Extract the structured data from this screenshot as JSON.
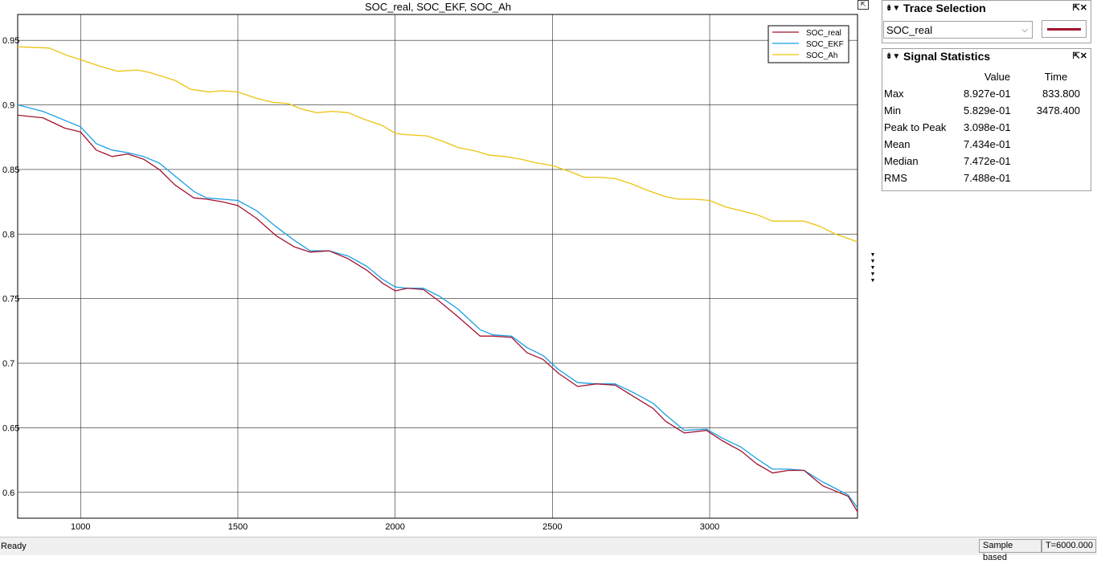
{
  "window": {
    "plot_title": "SOC_real, SOC_EKF, SOC_Ah"
  },
  "chart_data": {
    "type": "line",
    "title": "SOC_real, SOC_EKF, SOC_Ah",
    "xlabel": "",
    "ylabel": "",
    "xlim": [
      800,
      3470
    ],
    "ylim": [
      0.58,
      0.97
    ],
    "x_ticks": [
      "1000",
      "1500",
      "2000",
      "2500",
      "3000"
    ],
    "y_ticks": [
      "0.95",
      "0.9",
      "0.85",
      "0.8",
      "0.75",
      "0.7",
      "0.65",
      "0.6"
    ],
    "grid": true,
    "legend_position": "top-right",
    "series": [
      {
        "name": "SOC_real",
        "color": "#a2142f",
        "x": [
          800,
          880,
          950,
          1000,
          1050,
          1100,
          1150,
          1200,
          1250,
          1300,
          1360,
          1400,
          1450,
          1500,
          1560,
          1620,
          1680,
          1730,
          1790,
          1850,
          1910,
          1960,
          2000,
          2040,
          2090,
          2140,
          2200,
          2270,
          2310,
          2370,
          2420,
          2470,
          2520,
          2580,
          2640,
          2700,
          2760,
          2820,
          2860,
          2920,
          2990,
          3040,
          3100,
          3150,
          3200,
          3250,
          3300,
          3360,
          3400,
          3440,
          3470
        ],
        "y": [
          0.892,
          0.89,
          0.882,
          0.879,
          0.865,
          0.86,
          0.862,
          0.858,
          0.85,
          0.838,
          0.828,
          0.827,
          0.825,
          0.822,
          0.812,
          0.799,
          0.79,
          0.786,
          0.787,
          0.781,
          0.772,
          0.762,
          0.756,
          0.758,
          0.757,
          0.748,
          0.736,
          0.721,
          0.721,
          0.72,
          0.708,
          0.703,
          0.692,
          0.682,
          0.684,
          0.683,
          0.674,
          0.665,
          0.655,
          0.646,
          0.648,
          0.64,
          0.632,
          0.622,
          0.615,
          0.617,
          0.617,
          0.605,
          0.601,
          0.597,
          0.585
        ]
      },
      {
        "name": "SOC_EKF",
        "color": "#1aa0e6",
        "x": [
          800,
          880,
          950,
          1000,
          1050,
          1100,
          1150,
          1200,
          1250,
          1300,
          1360,
          1400,
          1450,
          1500,
          1560,
          1620,
          1680,
          1730,
          1790,
          1850,
          1910,
          1960,
          2000,
          2040,
          2090,
          2140,
          2200,
          2270,
          2310,
          2370,
          2420,
          2470,
          2520,
          2580,
          2640,
          2700,
          2760,
          2820,
          2860,
          2920,
          2990,
          3040,
          3100,
          3150,
          3200,
          3250,
          3300,
          3360,
          3400,
          3440,
          3470
        ],
        "y": [
          0.9,
          0.895,
          0.888,
          0.883,
          0.87,
          0.865,
          0.863,
          0.86,
          0.855,
          0.845,
          0.833,
          0.828,
          0.827,
          0.826,
          0.818,
          0.806,
          0.795,
          0.787,
          0.787,
          0.783,
          0.775,
          0.765,
          0.759,
          0.758,
          0.758,
          0.752,
          0.742,
          0.726,
          0.722,
          0.721,
          0.712,
          0.706,
          0.695,
          0.685,
          0.684,
          0.684,
          0.677,
          0.669,
          0.66,
          0.648,
          0.649,
          0.642,
          0.635,
          0.626,
          0.618,
          0.618,
          0.617,
          0.608,
          0.603,
          0.598,
          0.588
        ]
      },
      {
        "name": "SOC_Ah",
        "color": "#edc30f",
        "x": [
          800,
          900,
          960,
          1000,
          1060,
          1120,
          1180,
          1220,
          1300,
          1350,
          1410,
          1450,
          1500,
          1560,
          1610,
          1660,
          1700,
          1750,
          1800,
          1850,
          1900,
          1960,
          2000,
          2030,
          2100,
          2150,
          2200,
          2260,
          2300,
          2350,
          2400,
          2450,
          2500,
          2560,
          2600,
          2650,
          2700,
          2750,
          2800,
          2860,
          2900,
          2950,
          3000,
          3050,
          3100,
          3150,
          3200,
          3250,
          3300,
          3350,
          3400,
          3470
        ],
        "y": [
          0.945,
          0.944,
          0.938,
          0.935,
          0.93,
          0.926,
          0.927,
          0.925,
          0.919,
          0.912,
          0.91,
          0.911,
          0.91,
          0.905,
          0.902,
          0.901,
          0.897,
          0.894,
          0.895,
          0.894,
          0.889,
          0.884,
          0.878,
          0.877,
          0.876,
          0.872,
          0.867,
          0.864,
          0.861,
          0.86,
          0.858,
          0.855,
          0.853,
          0.848,
          0.844,
          0.844,
          0.843,
          0.839,
          0.834,
          0.829,
          0.827,
          0.827,
          0.826,
          0.821,
          0.818,
          0.815,
          0.81,
          0.81,
          0.81,
          0.806,
          0.8,
          0.794
        ]
      }
    ]
  },
  "trace_selection": {
    "title": "Trace Selection",
    "selected": "SOC_real",
    "line_color": "#a2142f"
  },
  "signal_statistics": {
    "title": "Signal Statistics",
    "headers": {
      "value": "Value",
      "time": "Time"
    },
    "rows": [
      {
        "label": "Max",
        "value": "8.927e-01",
        "time": "833.800"
      },
      {
        "label": "Min",
        "value": "5.829e-01",
        "time": "3478.400"
      },
      {
        "label": "Peak to Peak",
        "value": "3.098e-01",
        "time": ""
      },
      {
        "label": "Mean",
        "value": "7.434e-01",
        "time": ""
      },
      {
        "label": "Median",
        "value": "7.472e-01",
        "time": ""
      },
      {
        "label": "RMS",
        "value": "7.488e-01",
        "time": ""
      }
    ]
  },
  "status_bar": {
    "status": "Ready",
    "mode": "Sample based",
    "time": "T=6000.000"
  }
}
